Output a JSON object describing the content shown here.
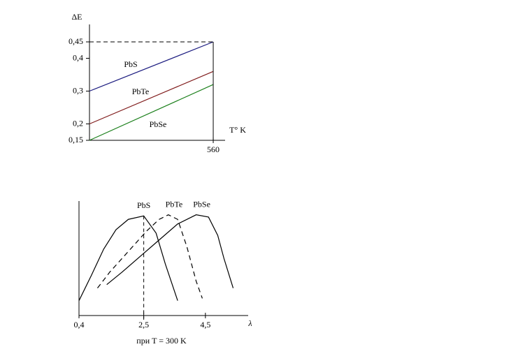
{
  "chart_data": [
    {
      "type": "line",
      "y_label": "ΔE",
      "x_label": "T° K",
      "x": [
        0,
        560
      ],
      "series": [
        {
          "name": "PbS",
          "color": "#1c1c80",
          "values": [
            0.3,
            0.45
          ]
        },
        {
          "name": "PbTe",
          "color": "#801c1c",
          "values": [
            0.2,
            0.36
          ]
        },
        {
          "name": "PbSe",
          "color": "#1c801c",
          "values": [
            0.15,
            0.32
          ]
        }
      ],
      "xlim": [
        0,
        620
      ],
      "xticks": [
        560
      ],
      "ylim": [
        0.15,
        0.5
      ],
      "yticks": [
        {
          "value": 0.15,
          "label": "0,15"
        },
        {
          "value": 0.2,
          "label": "0,2"
        },
        {
          "value": 0.3,
          "label": "0,3"
        },
        {
          "value": 0.4,
          "label": "0,4"
        },
        {
          "value": 0.45,
          "label": "0,45"
        }
      ]
    },
    {
      "type": "line",
      "x_label": "λ",
      "annotation": "при T = 300 K",
      "series": [
        {
          "name": "PbS",
          "color": "#000000",
          "line_style": "solid",
          "x": [
            0.4,
            0.8,
            1.2,
            1.6,
            2.0,
            2.5,
            2.9,
            3.2,
            3.6
          ],
          "values": [
            0.13,
            0.35,
            0.58,
            0.75,
            0.84,
            0.87,
            0.72,
            0.45,
            0.13
          ]
        },
        {
          "name": "PbTe",
          "color": "#000000",
          "line_style": "dashed",
          "x": [
            1.0,
            1.4,
            1.8,
            2.2,
            2.6,
            3.0,
            3.3,
            3.6,
            3.9,
            4.2,
            4.4
          ],
          "values": [
            0.24,
            0.38,
            0.5,
            0.62,
            0.74,
            0.84,
            0.88,
            0.84,
            0.6,
            0.3,
            0.15
          ]
        },
        {
          "name": "PbSe",
          "color": "#000000",
          "line_style": "solid",
          "x": [
            1.3,
            1.8,
            2.4,
            3.0,
            3.6,
            4.2,
            4.6,
            4.9,
            5.1,
            5.4
          ],
          "values": [
            0.27,
            0.38,
            0.52,
            0.66,
            0.8,
            0.88,
            0.86,
            0.7,
            0.5,
            0.24
          ]
        }
      ],
      "xlim": [
        0.4,
        6.0
      ],
      "xticks": [
        {
          "value": 0.4,
          "label": "0,4"
        },
        {
          "value": 2.5,
          "label": "2,5"
        },
        {
          "value": 4.5,
          "label": "4,5"
        }
      ],
      "ylim": [
        0,
        1
      ]
    }
  ]
}
